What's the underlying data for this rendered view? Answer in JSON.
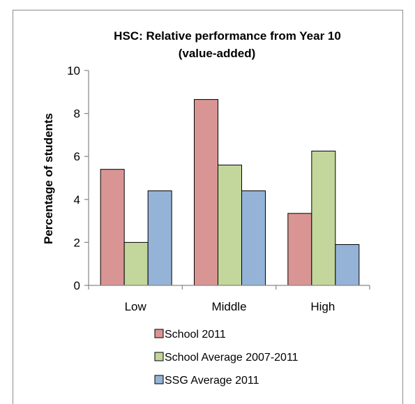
{
  "chart_data": {
    "type": "bar",
    "title": "HSC: Relative performance from Year 10",
    "subtitle": "(value-added)",
    "xlabel": "",
    "ylabel": "Percentage of students",
    "ylim": [
      0,
      10
    ],
    "yticks": [
      "0",
      "2",
      "4",
      "6",
      "8",
      "10"
    ],
    "categories": [
      "Low",
      "Middle",
      "High"
    ],
    "series": [
      {
        "name": "School 2011",
        "values": [
          5.4,
          8.65,
          3.35
        ],
        "color": "#d99594"
      },
      {
        "name": "School Average 2007-2011",
        "values": [
          2.0,
          5.6,
          6.25
        ],
        "color": "#c3d69b"
      },
      {
        "name": "SSG Average 2011",
        "values": [
          4.4,
          4.4,
          1.9
        ],
        "color": "#95b3d7"
      }
    ],
    "grid": false,
    "legend_placement": "bottom"
  }
}
